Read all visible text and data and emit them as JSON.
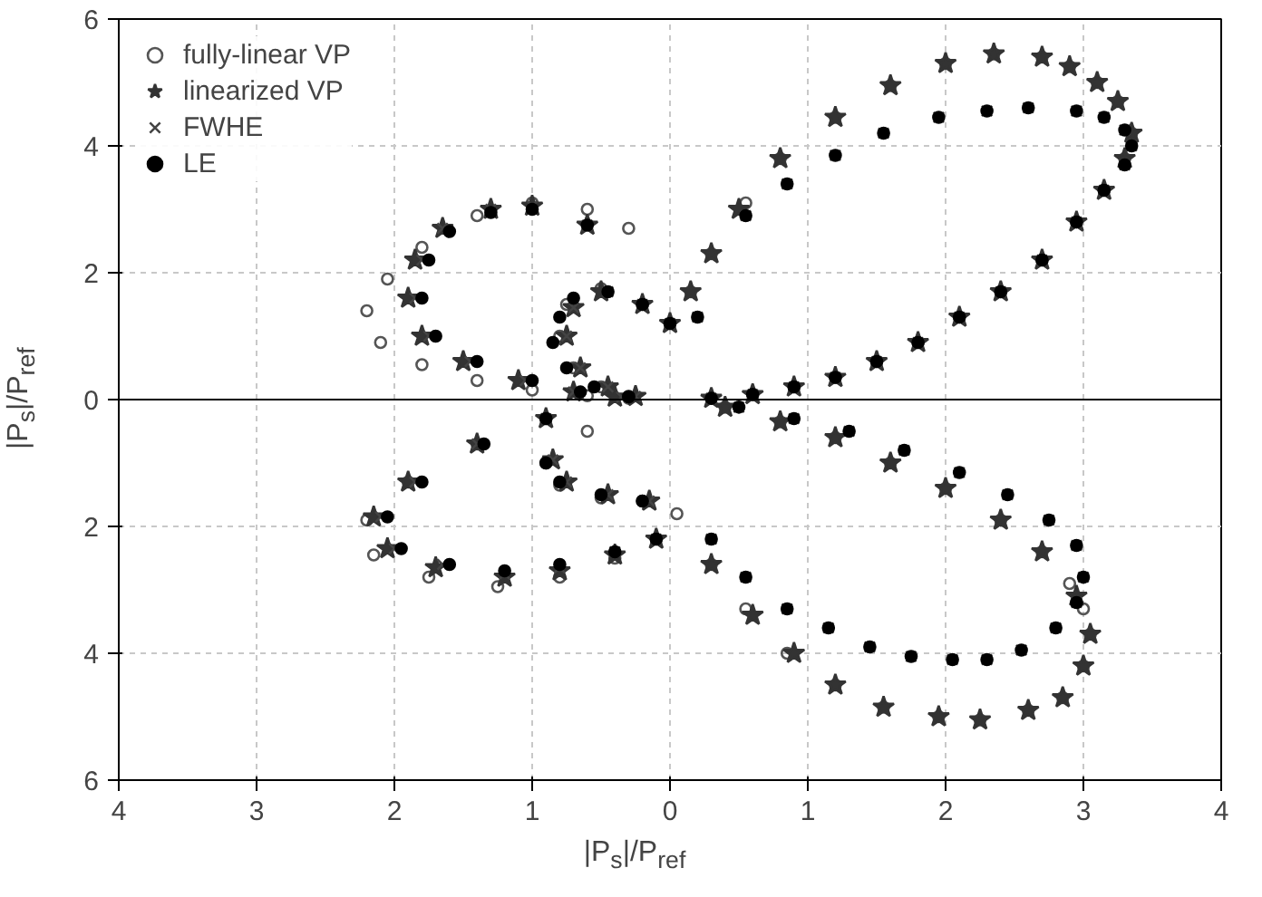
{
  "chart_data": {
    "type": "scatter",
    "xlabel": "|P$_{s}$|/P$_{ref}$",
    "ylabel": "|P$_{s}$|/P$_{ref}$",
    "xlim": [
      -4,
      4
    ],
    "ylim": [
      -6,
      6
    ],
    "xticks": [
      {
        "value": -4,
        "label": "4"
      },
      {
        "value": -3,
        "label": "3"
      },
      {
        "value": -2,
        "label": "2"
      },
      {
        "value": -1,
        "label": "1"
      },
      0,
      1,
      2,
      3,
      4
    ],
    "yticks": [
      {
        "value": -6,
        "label": "6"
      },
      {
        "value": -4,
        "label": "4"
      },
      {
        "value": -2,
        "label": "2"
      },
      0,
      2,
      4,
      6
    ],
    "grid": true,
    "legend": "top left",
    "ref_lines": [
      {
        "axis": "y",
        "value": 0,
        "color": "#000000",
        "line_style": "solid"
      }
    ],
    "series": [
      {
        "name": "fully-linear VP",
        "color": "#555555",
        "marker": "circle",
        "x": [
          0.3,
          0.6,
          0.9,
          1.2,
          1.5,
          1.8,
          2.1,
          2.4,
          2.7,
          2.95,
          3.15,
          3.3,
          3.35,
          3.25,
          3.1,
          2.9,
          2.7,
          2.35,
          2.0,
          1.6,
          1.2,
          0.8,
          0.55,
          0.3,
          0.15,
          0.0,
          -0.2,
          -0.5,
          -0.75,
          -0.8,
          -0.7,
          -0.5,
          -0.3,
          -0.6,
          -1.0,
          -1.4,
          -1.8,
          -2.05,
          -2.2,
          -2.1,
          -1.8,
          -1.4,
          -1.0,
          -0.6,
          -0.3,
          -0.9,
          -1.4,
          -1.9,
          -2.2,
          -2.15,
          -1.75,
          -1.25,
          -0.8,
          -0.4,
          -0.1,
          -0.6,
          -0.9,
          -0.8,
          -0.5,
          -0.2,
          0.05,
          0.3,
          0.55,
          0.85,
          1.2,
          1.55,
          1.95,
          2.25,
          2.6,
          2.85,
          3.0,
          3.05,
          3.0,
          2.9,
          2.7,
          2.4,
          2.0,
          1.6,
          1.2,
          0.8,
          0.4
        ],
        "values": [
          0.02,
          0.08,
          0.2,
          0.35,
          0.6,
          0.9,
          1.3,
          1.7,
          2.2,
          2.8,
          3.3,
          3.8,
          4.2,
          4.7,
          5.0,
          5.25,
          5.4,
          5.45,
          5.3,
          4.95,
          4.45,
          3.8,
          3.1,
          2.3,
          1.7,
          1.2,
          1.5,
          1.75,
          1.5,
          1.0,
          0.5,
          0.2,
          2.7,
          3.0,
          3.1,
          2.9,
          2.4,
          1.9,
          1.4,
          0.9,
          0.55,
          0.3,
          0.15,
          0.06,
          0.02,
          -0.3,
          -0.7,
          -1.3,
          -1.9,
          -2.45,
          -2.8,
          -2.95,
          -2.8,
          -2.5,
          -2.2,
          -0.5,
          -1.0,
          -1.35,
          -1.55,
          -1.6,
          -1.8,
          -2.6,
          -3.3,
          -4.0,
          -4.5,
          -4.85,
          -5.0,
          -5.05,
          -4.9,
          -4.7,
          -4.2,
          -3.7,
          -3.3,
          -2.9,
          -2.4,
          -1.9,
          -1.4,
          -1.0,
          -0.6,
          -0.35,
          -0.12
        ]
      },
      {
        "name": "linearized VP",
        "color": "#333333",
        "marker": "star",
        "x": [
          0.3,
          0.6,
          0.9,
          1.2,
          1.5,
          1.8,
          2.1,
          2.4,
          2.7,
          2.95,
          3.15,
          3.3,
          3.35,
          3.25,
          3.1,
          2.9,
          2.7,
          2.35,
          2.0,
          1.6,
          1.2,
          0.8,
          0.5,
          0.3,
          0.15,
          0.0,
          -0.2,
          -0.5,
          -0.7,
          -0.75,
          -0.65,
          -0.45,
          -0.25,
          -0.6,
          -1.0,
          -1.3,
          -1.65,
          -1.85,
          -1.9,
          -1.8,
          -1.5,
          -1.1,
          -0.7,
          -0.4,
          -0.9,
          -1.4,
          -1.9,
          -2.15,
          -2.05,
          -1.7,
          -1.2,
          -0.8,
          -0.4,
          -0.1,
          -0.85,
          -0.75,
          -0.45,
          -0.15,
          0.3,
          0.6,
          0.9,
          1.2,
          1.55,
          1.95,
          2.25,
          2.6,
          2.85,
          3.0,
          3.05,
          2.95,
          2.7,
          2.4,
          2.0,
          1.6,
          1.2,
          0.8,
          0.4
        ],
        "values": [
          0.02,
          0.08,
          0.2,
          0.35,
          0.6,
          0.9,
          1.3,
          1.7,
          2.2,
          2.8,
          3.3,
          3.8,
          4.2,
          4.7,
          5.0,
          5.25,
          5.4,
          5.45,
          5.3,
          4.95,
          4.45,
          3.8,
          3.0,
          2.3,
          1.7,
          1.2,
          1.5,
          1.7,
          1.45,
          1.0,
          0.5,
          0.2,
          0.05,
          2.75,
          3.05,
          3.0,
          2.7,
          2.2,
          1.6,
          1.0,
          0.6,
          0.3,
          0.12,
          0.04,
          -0.3,
          -0.7,
          -1.3,
          -1.85,
          -2.35,
          -2.65,
          -2.8,
          -2.7,
          -2.45,
          -2.2,
          -0.95,
          -1.3,
          -1.5,
          -1.6,
          -2.6,
          -3.4,
          -4.0,
          -4.5,
          -4.85,
          -5.0,
          -5.05,
          -4.9,
          -4.7,
          -4.2,
          -3.7,
          -3.1,
          -2.4,
          -1.9,
          -1.4,
          -1.0,
          -0.6,
          -0.35,
          -0.12
        ]
      },
      {
        "name": "FWHE",
        "color": "#444444",
        "marker": "cross",
        "x": [
          0.3,
          0.6,
          0.9,
          1.2,
          1.5,
          1.8,
          2.1,
          2.4,
          2.7,
          2.95,
          3.15,
          3.3,
          3.35,
          3.3,
          3.15,
          2.95,
          2.6,
          2.3,
          1.95,
          1.55,
          1.2,
          0.85,
          0.55,
          0.2,
          0.0,
          -0.2,
          -0.45,
          -0.7,
          -0.75,
          -0.65,
          -0.45,
          -0.25,
          -0.6,
          -1.0,
          -1.3,
          -1.65,
          -1.8,
          -1.85,
          -1.75,
          -1.45,
          -1.05,
          -0.7,
          -0.35,
          -0.9,
          -1.4,
          -1.85,
          -2.1,
          -2.0,
          -1.65,
          -1.2,
          -0.8,
          -0.4,
          -0.1,
          -0.85,
          -0.75,
          -0.45,
          -0.15,
          0.3,
          0.55,
          0.85,
          1.15,
          1.45,
          1.75,
          2.05,
          2.3,
          2.55,
          2.8,
          2.95,
          3.0,
          2.95,
          2.75,
          2.45,
          2.1,
          1.7,
          1.3,
          0.9,
          0.5
        ],
        "values": [
          0.02,
          0.08,
          0.2,
          0.35,
          0.6,
          0.9,
          1.3,
          1.7,
          2.2,
          2.8,
          3.3,
          3.7,
          4.0,
          4.25,
          4.45,
          4.55,
          4.6,
          4.55,
          4.45,
          4.2,
          3.85,
          3.4,
          2.9,
          1.3,
          1.2,
          1.5,
          1.7,
          1.45,
          1.0,
          0.5,
          0.2,
          0.05,
          2.75,
          3.05,
          3.0,
          2.7,
          2.2,
          1.6,
          1.0,
          0.6,
          0.3,
          0.12,
          0.04,
          -0.3,
          -0.7,
          -1.3,
          -1.85,
          -2.35,
          -2.6,
          -2.75,
          -2.65,
          -2.4,
          -2.2,
          -0.95,
          -1.3,
          -1.5,
          -1.6,
          -2.2,
          -2.8,
          -3.3,
          -3.6,
          -3.9,
          -4.05,
          -4.1,
          -4.1,
          -3.95,
          -3.6,
          -3.2,
          -2.8,
          -2.3,
          -1.9,
          -1.5,
          -1.15,
          -0.8,
          -0.5,
          -0.3,
          -0.12
        ]
      },
      {
        "name": "LE",
        "color": "#000000",
        "marker": "circle",
        "x": [
          0.3,
          0.6,
          0.9,
          1.2,
          1.5,
          1.8,
          2.1,
          2.4,
          2.7,
          2.95,
          3.15,
          3.3,
          3.35,
          3.3,
          3.15,
          2.95,
          2.6,
          2.3,
          1.95,
          1.55,
          1.2,
          0.85,
          0.55,
          0.2,
          0.0,
          -0.2,
          -0.45,
          -0.7,
          -0.8,
          -0.85,
          -0.75,
          -0.55,
          -0.3,
          -0.6,
          -1.0,
          -1.3,
          -1.6,
          -1.75,
          -1.8,
          -1.7,
          -1.4,
          -1.0,
          -0.65,
          -0.3,
          -0.9,
          -1.35,
          -1.8,
          -2.05,
          -1.95,
          -1.6,
          -1.2,
          -0.8,
          -0.4,
          -0.1,
          -0.9,
          -0.8,
          -0.5,
          -0.2,
          0.3,
          0.55,
          0.85,
          1.15,
          1.45,
          1.75,
          2.05,
          2.3,
          2.55,
          2.8,
          2.95,
          3.0,
          2.95,
          2.75,
          2.45,
          2.1,
          1.7,
          1.3,
          0.9,
          0.5
        ],
        "values": [
          0.02,
          0.08,
          0.2,
          0.35,
          0.6,
          0.9,
          1.3,
          1.7,
          2.2,
          2.8,
          3.3,
          3.7,
          4.0,
          4.25,
          4.45,
          4.55,
          4.6,
          4.55,
          4.45,
          4.2,
          3.85,
          3.4,
          2.9,
          1.3,
          1.2,
          1.5,
          1.7,
          1.6,
          1.3,
          0.9,
          0.5,
          0.2,
          0.05,
          2.75,
          3.0,
          2.95,
          2.65,
          2.2,
          1.6,
          1.0,
          0.6,
          0.3,
          0.12,
          0.04,
          -0.3,
          -0.7,
          -1.3,
          -1.85,
          -2.35,
          -2.6,
          -2.7,
          -2.6,
          -2.4,
          -2.2,
          -1.0,
          -1.3,
          -1.5,
          -1.6,
          -2.2,
          -2.8,
          -3.3,
          -3.6,
          -3.9,
          -4.05,
          -4.1,
          -4.1,
          -3.95,
          -3.6,
          -3.2,
          -2.8,
          -2.3,
          -1.9,
          -1.5,
          -1.15,
          -0.8,
          -0.5,
          -0.3,
          -0.12
        ]
      }
    ]
  }
}
